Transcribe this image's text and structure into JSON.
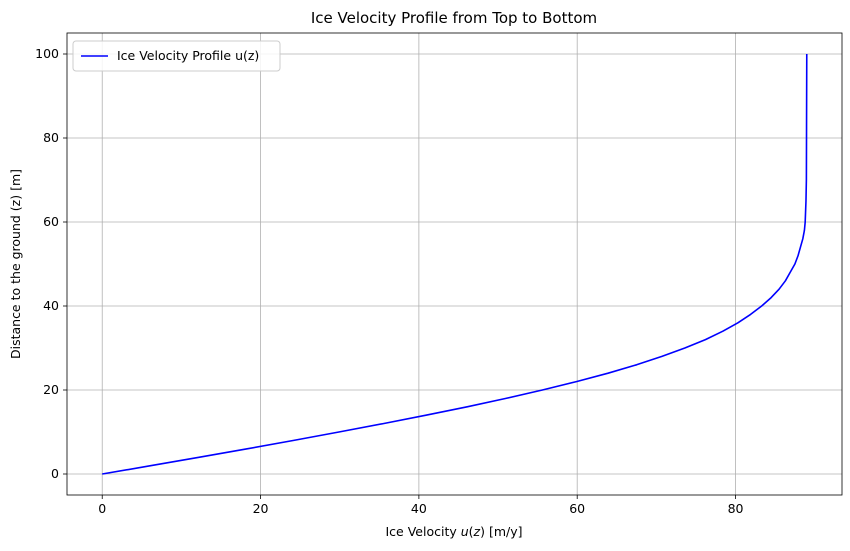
{
  "chart_data": {
    "type": "line",
    "title": "Ice Velocity Profile from Top to Bottom",
    "xlabel": "Ice Velocity u(z) [m/y]",
    "ylabel": "Distance to the ground (z) [m]",
    "xlim": [
      -4.45,
      93.45
    ],
    "ylim": [
      -5,
      105
    ],
    "xticks": [
      0,
      20,
      40,
      60,
      80
    ],
    "yticks": [
      0,
      20,
      40,
      60,
      80,
      100
    ],
    "grid": true,
    "legend_position": "upper-left",
    "series": [
      {
        "name": "Ice Velocity Profile u(z)",
        "color": "#0000ff",
        "x": [
          0,
          6.2,
          12.3,
          18.3,
          24.2,
          29.9,
          35.5,
          40.9,
          46.1,
          51.0,
          55.6,
          59.9,
          63.9,
          67.5,
          70.7,
          73.6,
          76.2,
          78.4,
          80.3,
          81.9,
          83.3,
          84.5,
          85.5,
          86.3,
          86.9,
          87.5,
          87.9,
          88.2,
          88.5,
          88.7,
          88.8,
          88.9,
          88.95,
          89.0
        ],
        "y": [
          0,
          2,
          4,
          6,
          8,
          10,
          12,
          14,
          16,
          18,
          20,
          22,
          24,
          26,
          28,
          30,
          32,
          34,
          36,
          38,
          40,
          42,
          44,
          46,
          48,
          50,
          52,
          54,
          56,
          58,
          60,
          65,
          70,
          100
        ]
      }
    ]
  }
}
